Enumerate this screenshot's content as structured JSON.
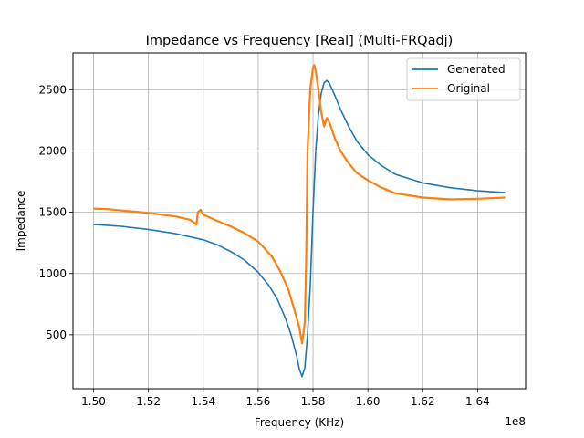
{
  "chart_data": {
    "type": "line",
    "title": "Impedance vs Frequency [Real] (Multi-FRQadj)",
    "xlabel": "Frequency (KHz)",
    "ylabel": "Impedance",
    "x_offset_label": "1e8",
    "xlim": [
      1.4925,
      1.6575
    ],
    "ylim": [
      60,
      2800
    ],
    "x_ticks": [
      1.5,
      1.52,
      1.54,
      1.56,
      1.58,
      1.6,
      1.62,
      1.64
    ],
    "x_tick_labels": [
      "1.50",
      "1.52",
      "1.54",
      "1.56",
      "1.58",
      "1.60",
      "1.62",
      "1.64"
    ],
    "y_ticks": [
      500,
      1000,
      1500,
      2000,
      2500
    ],
    "y_tick_labels": [
      "500",
      "1000",
      "1500",
      "2000",
      "2500"
    ],
    "grid": true,
    "legend_position": "top-right",
    "series": [
      {
        "name": "Generated",
        "color": "#1f77b4",
        "x": [
          1.5,
          1.51,
          1.52,
          1.53,
          1.54,
          1.545,
          1.55,
          1.555,
          1.56,
          1.564,
          1.567,
          1.57,
          1.572,
          1.574,
          1.575,
          1.576,
          1.577,
          1.578,
          1.579,
          1.58,
          1.581,
          1.582,
          1.583,
          1.584,
          1.585,
          1.586,
          1.588,
          1.59,
          1.593,
          1.596,
          1.6,
          1.605,
          1.61,
          1.62,
          1.63,
          1.64,
          1.65
        ],
        "y": [
          1400,
          1385,
          1360,
          1325,
          1275,
          1235,
          1180,
          1110,
          1010,
          900,
          790,
          630,
          500,
          330,
          220,
          160,
          230,
          500,
          900,
          1500,
          2000,
          2300,
          2470,
          2555,
          2575,
          2550,
          2450,
          2340,
          2200,
          2080,
          1970,
          1880,
          1810,
          1740,
          1700,
          1675,
          1660
        ]
      },
      {
        "name": "Original",
        "color": "#ff7f0e",
        "x": [
          1.5,
          1.505,
          1.51,
          1.52,
          1.53,
          1.535,
          1.537,
          1.5375,
          1.538,
          1.539,
          1.54,
          1.545,
          1.55,
          1.555,
          1.56,
          1.565,
          1.568,
          1.571,
          1.573,
          1.575,
          1.576,
          1.577,
          1.5775,
          1.578,
          1.579,
          1.58,
          1.5805,
          1.581,
          1.582,
          1.583,
          1.584,
          1.585,
          1.586,
          1.588,
          1.59,
          1.593,
          1.596,
          1.6,
          1.605,
          1.61,
          1.62,
          1.63,
          1.64,
          1.65
        ],
        "y": [
          1530,
          1525,
          1515,
          1495,
          1465,
          1440,
          1410,
          1400,
          1500,
          1520,
          1480,
          1430,
          1385,
          1330,
          1260,
          1140,
          1020,
          870,
          720,
          560,
          430,
          600,
          1100,
          2000,
          2500,
          2680,
          2700,
          2650,
          2500,
          2320,
          2200,
          2270,
          2230,
          2100,
          2000,
          1900,
          1820,
          1760,
          1700,
          1655,
          1620,
          1605,
          1610,
          1620
        ]
      }
    ]
  }
}
